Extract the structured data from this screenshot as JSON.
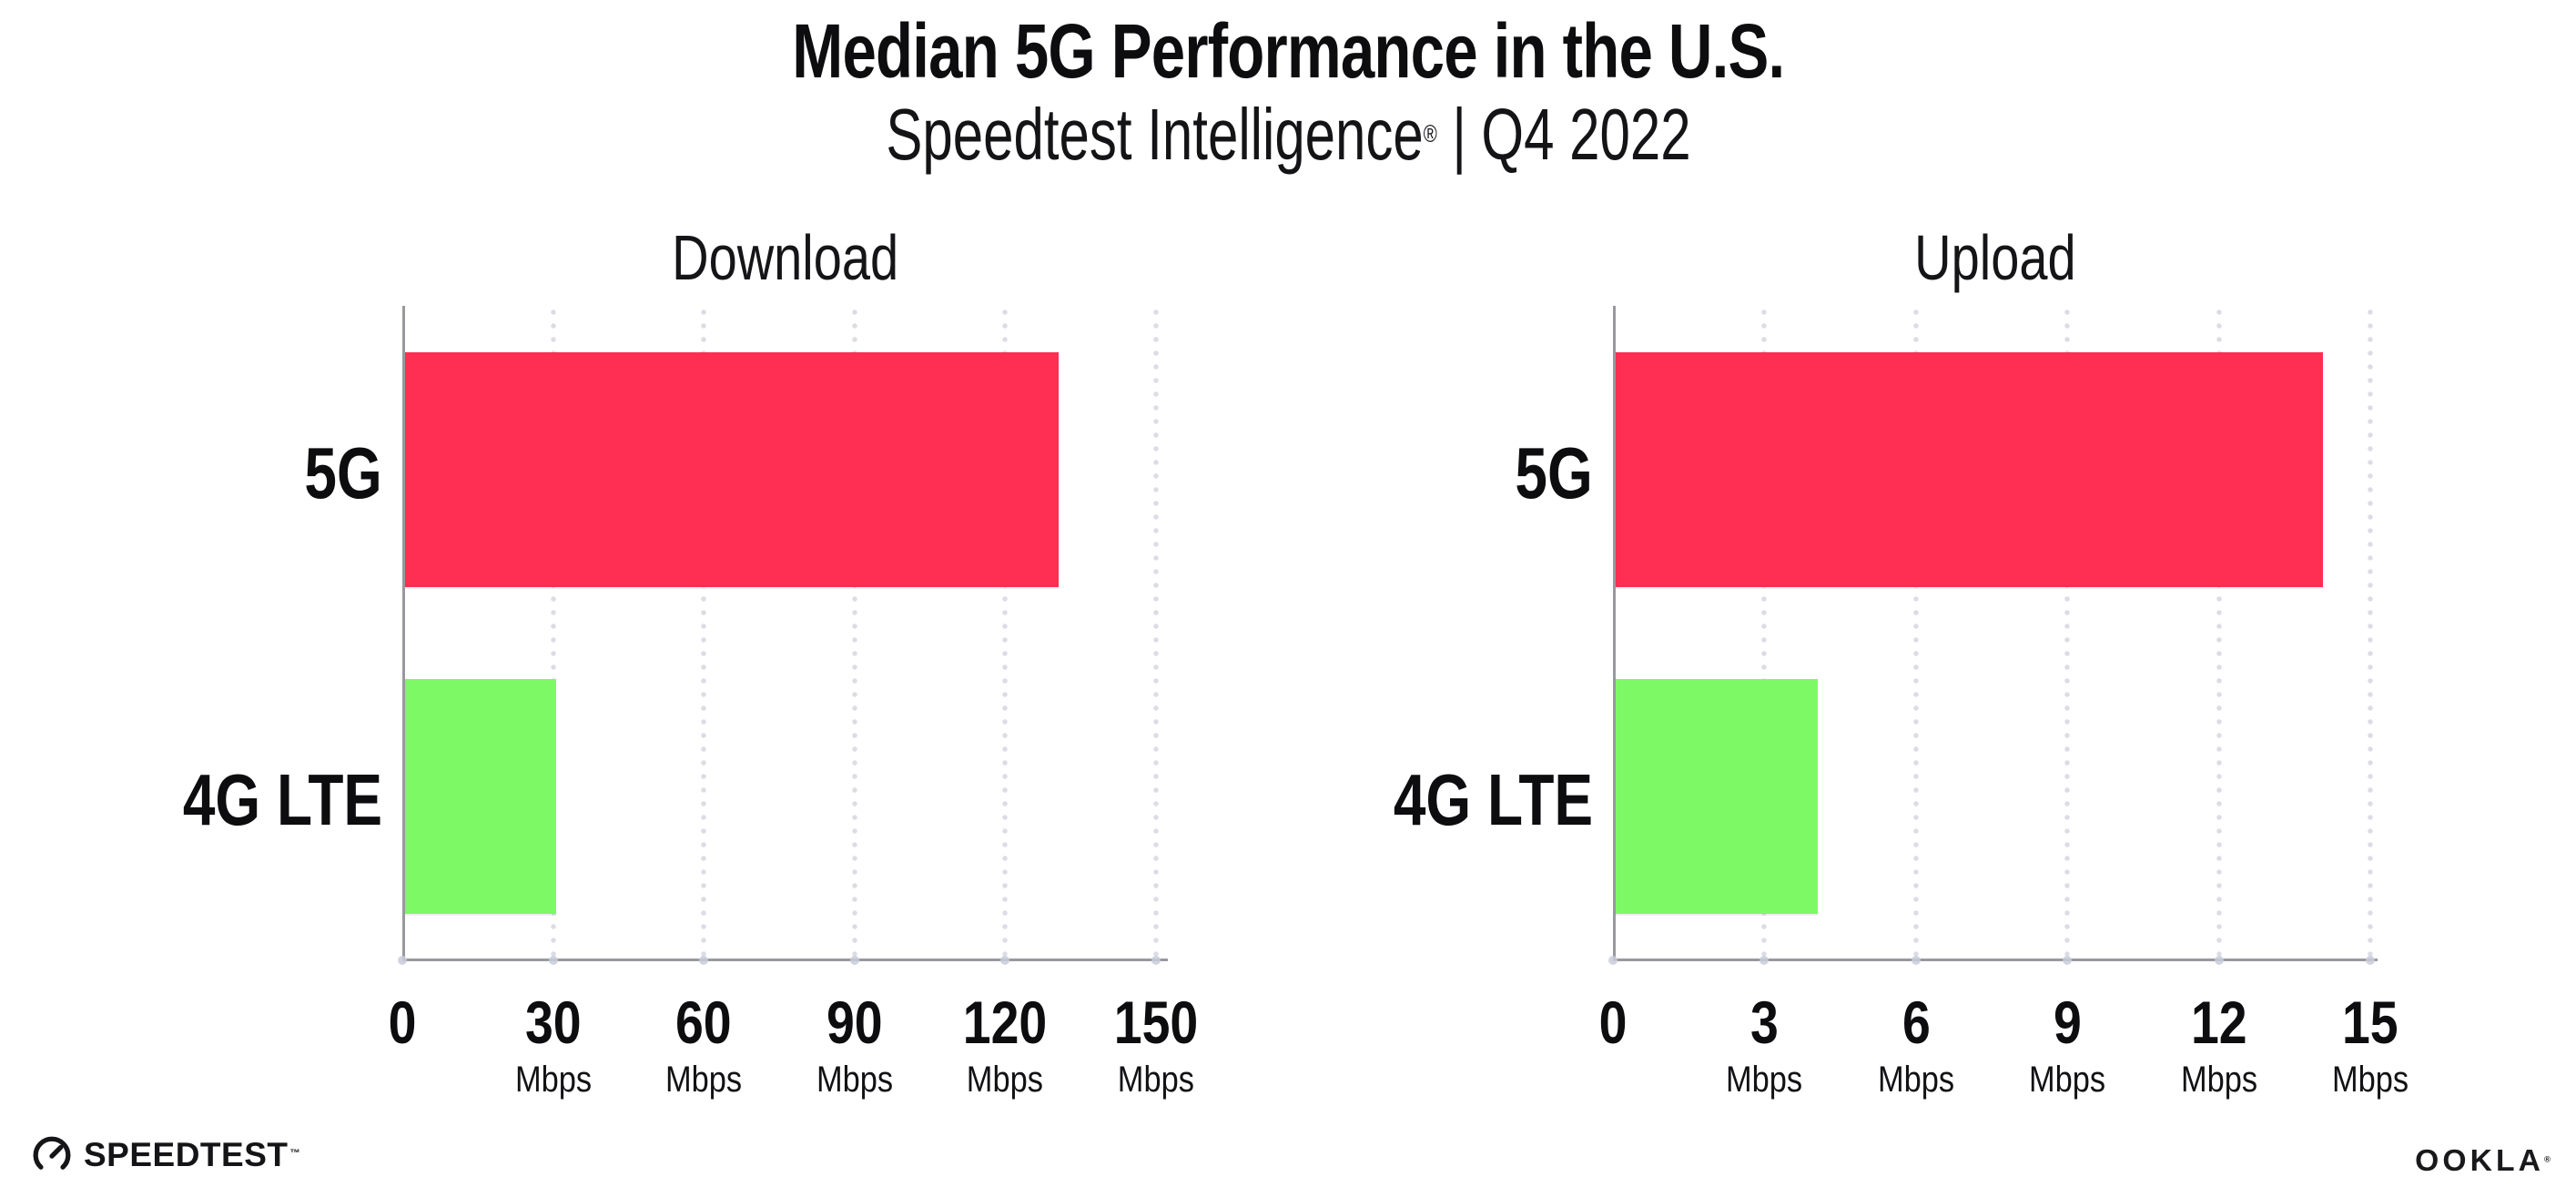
{
  "header": {
    "title": "Median 5G Performance in the U.S.",
    "subtitle_brand": "Speedtest Intelligence",
    "subtitle_reg": "®",
    "subtitle_sep": "|",
    "subtitle_period": "Q4 2022"
  },
  "chart_data": [
    {
      "type": "bar",
      "orientation": "horizontal",
      "title": "Download",
      "categories": [
        "5G",
        "4G LTE"
      ],
      "values": [
        130,
        30
      ],
      "unit": "Mbps",
      "ticks": [
        0,
        30,
        60,
        90,
        120,
        150
      ],
      "xlim": [
        0,
        150
      ],
      "bar_colors": [
        "#FF2E52",
        "#7DF965"
      ],
      "grid": "dotted-vertical",
      "legend": "none"
    },
    {
      "type": "bar",
      "orientation": "horizontal",
      "title": "Upload",
      "categories": [
        "5G",
        "4G LTE"
      ],
      "values": [
        14,
        4
      ],
      "unit": "Mbps",
      "ticks": [
        0,
        3,
        6,
        9,
        12,
        15
      ],
      "xlim": [
        0,
        15
      ],
      "bar_colors": [
        "#FF2E52",
        "#7DF965"
      ],
      "grid": "dotted-vertical",
      "legend": "none"
    }
  ],
  "colors": {
    "bar_5g": "#FF2E52",
    "bar_4g_lte": "#7DF965",
    "axis": "#98989F",
    "grid_dot": "#DCDCE6",
    "tick_dot": "#C9CCDB",
    "text": "#0D0D0F",
    "background": "#FFFFFF"
  },
  "footer": {
    "speedtest_label": "SPEEDTEST",
    "speedtest_tm": "™",
    "ookla_label": "OOKLA",
    "ookla_reg": "®"
  }
}
